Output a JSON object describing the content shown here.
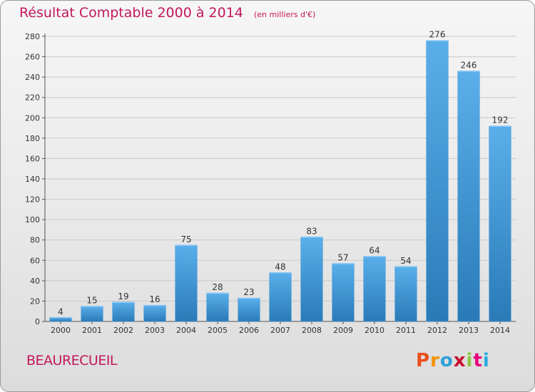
{
  "header": {
    "title": "Résultat Comptable 2000 à 2014",
    "unit": "(en milliers d'€)"
  },
  "footer": {
    "commune": "BEAUREcueil",
    "logo_letters": [
      "P",
      "r",
      "o",
      "x",
      "i",
      "t",
      "i"
    ],
    "logo_colors": [
      "#e94e1b",
      "#f39200",
      "#2e9fd8",
      "#c8102e",
      "#8dc63f",
      "#e6007e",
      "#29abe2"
    ]
  },
  "chart_data": {
    "type": "bar",
    "title": "Résultat Comptable 2000 à 2014",
    "subtitle": "(en milliers d'€)",
    "categories": [
      "2000",
      "2001",
      "2002",
      "2003",
      "2004",
      "2005",
      "2006",
      "2007",
      "2008",
      "2009",
      "2010",
      "2011",
      "2012",
      "2013",
      "2014"
    ],
    "values": [
      4,
      15,
      19,
      16,
      75,
      28,
      23,
      48,
      83,
      57,
      64,
      54,
      276,
      246,
      192
    ],
    "ylim": [
      0,
      280
    ],
    "yticks": [
      0,
      20,
      40,
      60,
      80,
      100,
      120,
      140,
      160,
      180,
      200,
      220,
      240,
      260,
      280
    ],
    "grid": true,
    "bar_color_top": "#5aafea",
    "bar_color_bottom": "#2a7ab8",
    "label_color": "#333333"
  }
}
